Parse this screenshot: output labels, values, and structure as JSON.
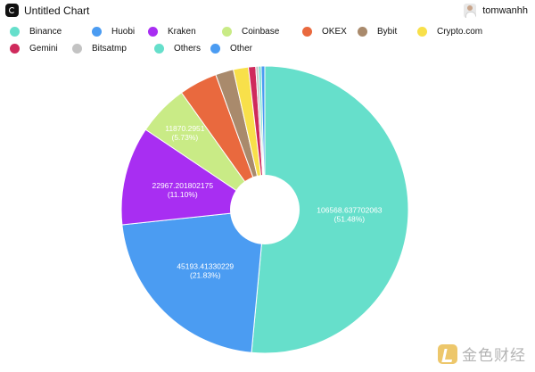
{
  "header": {
    "title": "Untitled Chart",
    "username": "tomwanhh"
  },
  "watermark": {
    "text": "金色财经"
  },
  "chart_data": {
    "type": "pie",
    "title": "Untitled Chart",
    "donut": true,
    "legend_position": "top-left",
    "series": [
      {
        "name": "Binance",
        "value": 106568.637702063,
        "label": "106568.637702063",
        "percent": "(51.48%)",
        "color": "#66dfcb"
      },
      {
        "name": "Huobi",
        "value": 45193.41330229,
        "label": "45193.41330229",
        "percent": "(21.83%)",
        "color": "#4b9cf2"
      },
      {
        "name": "Kraken",
        "value": 22967.201802175,
        "label": "22967.201802175",
        "percent": "(11.10%)",
        "color": "#a82ef2"
      },
      {
        "name": "Coinbase",
        "value": 11870.2951,
        "label": "11870.2951",
        "percent": "(5.73%)",
        "color": "#c9eb86"
      },
      {
        "name": "OKEX",
        "value": 8900,
        "label": "",
        "percent": "",
        "color": "#e9693e"
      },
      {
        "name": "Bybit",
        "value": 4200,
        "label": "",
        "percent": "",
        "color": "#a98a6c"
      },
      {
        "name": "Crypto.com",
        "value": 3500,
        "label": "",
        "percent": "",
        "color": "#f8e04a"
      },
      {
        "name": "Gemini",
        "value": 1700,
        "label": "",
        "percent": "",
        "color": "#cf2a5c"
      },
      {
        "name": "Bitsatmp",
        "value": 650,
        "label": "",
        "percent": "",
        "color": "#c3c3c3"
      },
      {
        "name": "Others",
        "value": 600,
        "label": "",
        "percent": "",
        "color": "#66dfcb"
      },
      {
        "name": "Other",
        "value": 850,
        "label": "",
        "percent": "",
        "color": "#4b9cf2"
      }
    ]
  }
}
